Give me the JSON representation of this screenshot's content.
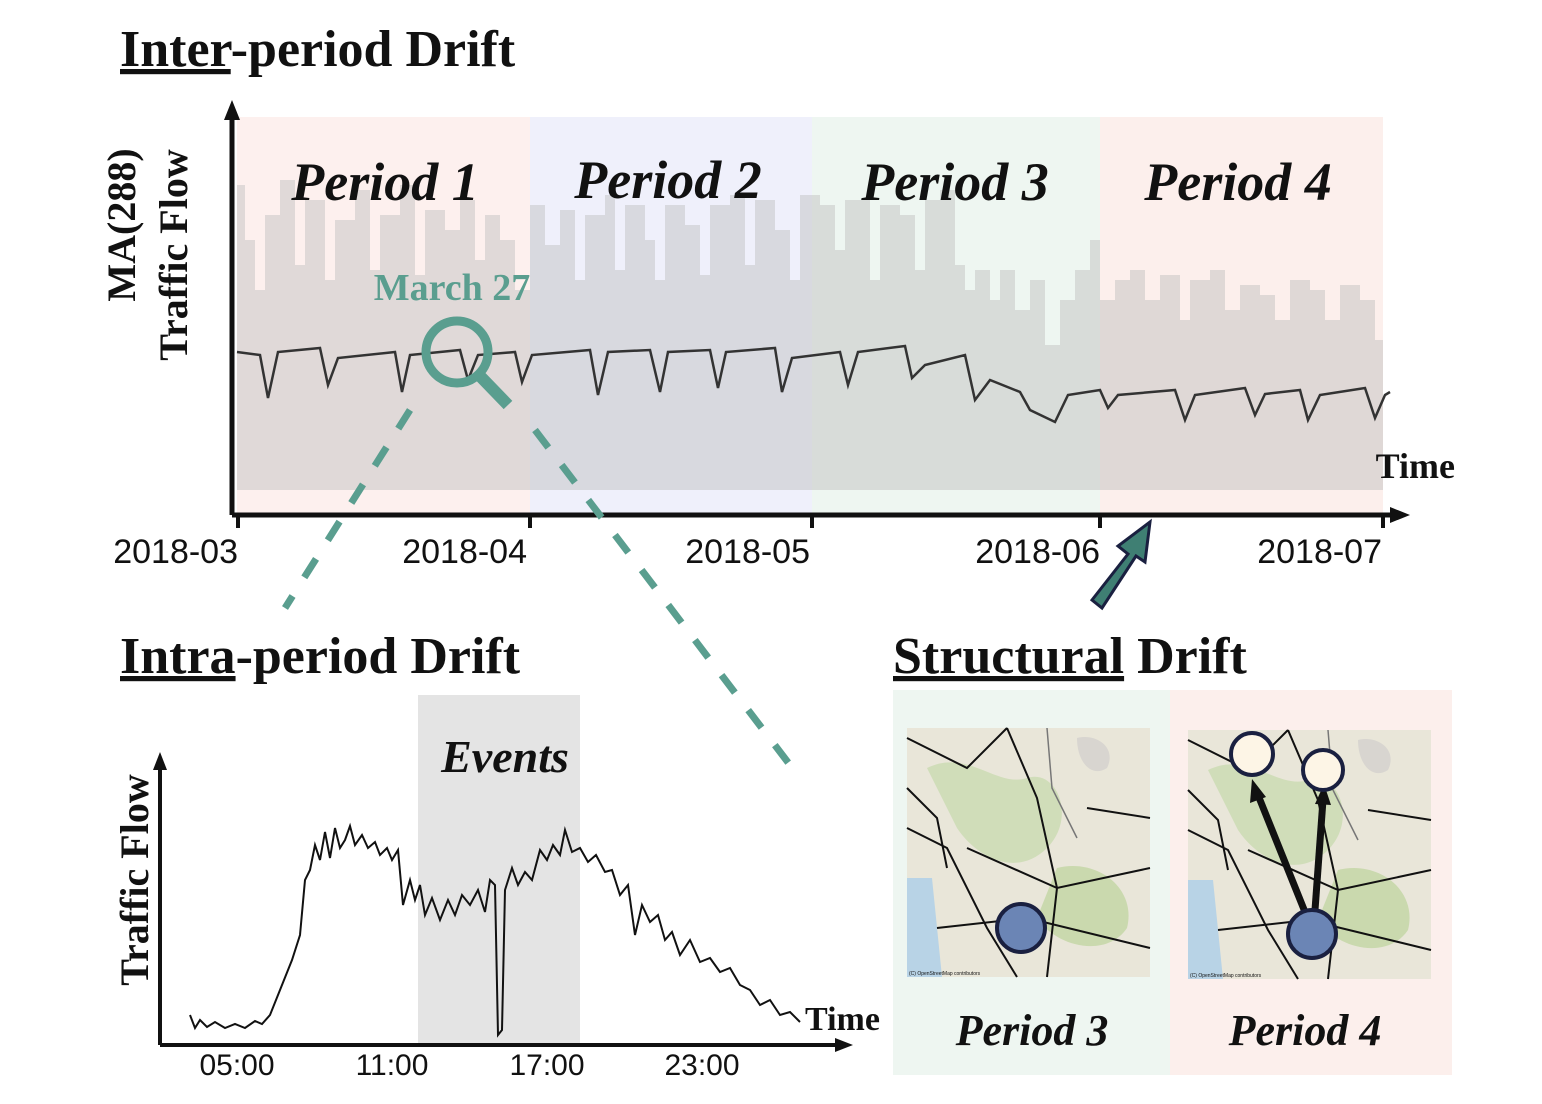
{
  "inter_period": {
    "title_underlined": "Inter",
    "title_rest": "-period Drift",
    "y_label_lines": [
      "MA(288)",
      "Traffic Flow"
    ],
    "periods": [
      "Period 1",
      "Period 2",
      "Period 3",
      "Period 4"
    ],
    "annotation": "March 27",
    "x_label": "Time",
    "x_ticks": [
      "2018-03",
      "2018-04",
      "2018-05",
      "2018-06",
      "2018-07"
    ]
  },
  "intra_period": {
    "title_underlined": "Intra",
    "title_rest": "-period Drift",
    "y_label": "Traffic Flow",
    "shaded_label": "Events",
    "x_label": "Time",
    "x_ticks": [
      "05:00",
      "11:00",
      "17:00",
      "23:00"
    ]
  },
  "structural": {
    "title_underlined": "Structural",
    "title_rest": " Drift",
    "panels": [
      "Period 3",
      "Period 4"
    ],
    "map_credit": "(C) OpenStreetMap contributors"
  }
}
